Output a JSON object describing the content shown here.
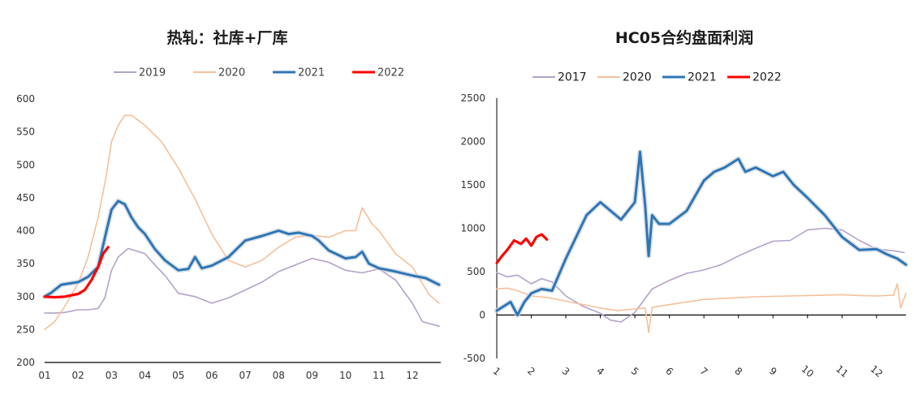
{
  "chart_data": [
    {
      "type": "line",
      "title": "热轧：社库+厂库",
      "xlabel": "",
      "ylabel": "",
      "ylim": [
        200,
        600
      ],
      "yticks": [
        200,
        250,
        300,
        350,
        400,
        450,
        500,
        550,
        600
      ],
      "xlim": [
        1,
        12.85
      ],
      "xticks": [
        1,
        2,
        3,
        4,
        5,
        6,
        7,
        8,
        9,
        10,
        11,
        12
      ],
      "xtick_labels": [
        "01",
        "02",
        "03",
        "04",
        "05",
        "06",
        "07",
        "08",
        "09",
        "10",
        "11",
        "12"
      ],
      "grid": false,
      "legend": "top-center",
      "series": [
        {
          "name": "2019",
          "color": "#b3a2c7",
          "x": [
            1,
            1.3,
            1.6,
            2,
            2.3,
            2.6,
            2.8,
            3.0,
            3.2,
            3.5,
            4,
            4.3,
            4.6,
            5,
            5.5,
            6,
            6.5,
            7,
            7.5,
            8,
            8.5,
            9,
            9.5,
            10,
            10.5,
            11,
            11.5,
            12,
            12.3,
            12.8
          ],
          "y": [
            275,
            275,
            276,
            280,
            280,
            282,
            298,
            340,
            360,
            373,
            365,
            348,
            332,
            305,
            300,
            290,
            298,
            310,
            322,
            338,
            348,
            358,
            352,
            340,
            336,
            342,
            325,
            290,
            262,
            255
          ]
        },
        {
          "name": "2020",
          "color": "#f4c09a",
          "x": [
            1,
            1.3,
            1.6,
            2,
            2.3,
            2.6,
            2.85,
            3.0,
            3.2,
            3.4,
            3.6,
            4,
            4.5,
            5,
            5.5,
            6,
            6.5,
            7,
            7.5,
            8,
            8.5,
            9,
            9.5,
            10,
            10.3,
            10.5,
            10.8,
            11,
            11.5,
            12,
            12.5,
            12.8
          ],
          "y": [
            250,
            262,
            285,
            320,
            360,
            420,
            485,
            535,
            560,
            575,
            575,
            560,
            535,
            495,
            448,
            395,
            355,
            345,
            355,
            375,
            390,
            393,
            390,
            400,
            400,
            435,
            410,
            400,
            365,
            345,
            303,
            290
          ]
        },
        {
          "name": "2021",
          "color": "#2e75b6",
          "x": [
            1,
            1.2,
            1.5,
            2,
            2.3,
            2.6,
            2.85,
            3.0,
            3.2,
            3.4,
            3.6,
            3.8,
            4.0,
            4.3,
            4.6,
            5,
            5.3,
            5.5,
            5.7,
            6,
            6.5,
            7,
            7.5,
            8,
            8.3,
            8.6,
            9,
            9.2,
            9.5,
            10,
            10.3,
            10.5,
            10.7,
            11,
            11.5,
            12,
            12.4,
            12.8
          ],
          "y": [
            300,
            306,
            318,
            322,
            330,
            345,
            400,
            432,
            445,
            440,
            420,
            405,
            395,
            372,
            355,
            340,
            342,
            360,
            343,
            347,
            360,
            385,
            392,
            400,
            395,
            397,
            392,
            385,
            370,
            358,
            360,
            368,
            350,
            343,
            338,
            332,
            328,
            318
          ]
        },
        {
          "name": "2022",
          "color": "#ff0000",
          "x": [
            1,
            1.3,
            1.6,
            2,
            2.2,
            2.4,
            2.6,
            2.75,
            2.9
          ],
          "y": [
            300,
            299,
            300,
            304,
            310,
            325,
            345,
            365,
            375
          ]
        }
      ]
    },
    {
      "type": "line",
      "title": "HC05合约盘面利润",
      "xlabel": "",
      "ylabel": "",
      "ylim": [
        -500,
        2500
      ],
      "yticks": [
        -500,
        0,
        500,
        1000,
        1500,
        2000,
        2500
      ],
      "xlim": [
        1,
        12.85
      ],
      "xticks": [
        1,
        2,
        3,
        4,
        5,
        6,
        7,
        8,
        9,
        10,
        11,
        12
      ],
      "xtick_labels": [
        "1",
        "2",
        "3",
        "4",
        "5",
        "6",
        "7",
        "8",
        "9",
        "10",
        "11",
        "12"
      ],
      "grid": false,
      "legend": "top-center",
      "series": [
        {
          "name": "2017",
          "color": "#b3a2c7",
          "x": [
            1,
            1.3,
            1.6,
            2,
            2.3,
            2.6,
            3,
            3.5,
            4,
            4.3,
            4.6,
            5,
            5.5,
            6,
            6.5,
            7,
            7.5,
            8,
            8.5,
            9,
            9.5,
            10,
            10.5,
            11,
            11.5,
            12,
            12.5,
            12.8
          ],
          "y": [
            490,
            440,
            460,
            360,
            420,
            380,
            220,
            100,
            20,
            -60,
            -80,
            30,
            300,
            400,
            480,
            520,
            580,
            680,
            770,
            850,
            860,
            980,
            1000,
            980,
            860,
            760,
            740,
            720
          ]
        },
        {
          "name": "2020",
          "color": "#f4c09a",
          "x": [
            1,
            1.3,
            1.6,
            2,
            2.5,
            3,
            3.5,
            4,
            4.5,
            5,
            5.3,
            5.4,
            5.5,
            6,
            6.5,
            7,
            7.5,
            8,
            8.5,
            9,
            9.5,
            10,
            10.5,
            11,
            11.5,
            12,
            12.5,
            12.6,
            12.7,
            12.85
          ],
          "y": [
            300,
            310,
            280,
            220,
            200,
            160,
            120,
            80,
            50,
            70,
            80,
            -200,
            90,
            120,
            150,
            180,
            190,
            200,
            210,
            215,
            220,
            225,
            230,
            235,
            225,
            220,
            230,
            360,
            80,
            250
          ]
        },
        {
          "name": "2021",
          "color": "#2e75b6",
          "x": [
            1,
            1.2,
            1.4,
            1.6,
            1.8,
            2,
            2.3,
            2.6,
            3,
            3.3,
            3.6,
            4,
            4.3,
            4.6,
            5,
            5.15,
            5.3,
            5.4,
            5.5,
            5.7,
            6,
            6.5,
            7,
            7.3,
            7.6,
            8,
            8.2,
            8.5,
            9,
            9.3,
            9.6,
            10,
            10.5,
            11,
            11.5,
            12,
            12.3,
            12.6,
            12.85
          ],
          "y": [
            50,
            100,
            150,
            0,
            150,
            250,
            300,
            280,
            650,
            900,
            1150,
            1300,
            1200,
            1100,
            1300,
            1880,
            1250,
            680,
            1150,
            1050,
            1050,
            1200,
            1550,
            1650,
            1700,
            1800,
            1650,
            1700,
            1600,
            1650,
            1500,
            1350,
            1150,
            900,
            750,
            760,
            700,
            650,
            580
          ]
        },
        {
          "name": "2022",
          "color": "#ff0000",
          "x": [
            1,
            1.15,
            1.3,
            1.5,
            1.7,
            1.85,
            2.0,
            2.15,
            2.3,
            2.45
          ],
          "y": [
            600,
            680,
            750,
            860,
            820,
            880,
            800,
            900,
            930,
            870
          ]
        }
      ]
    }
  ]
}
